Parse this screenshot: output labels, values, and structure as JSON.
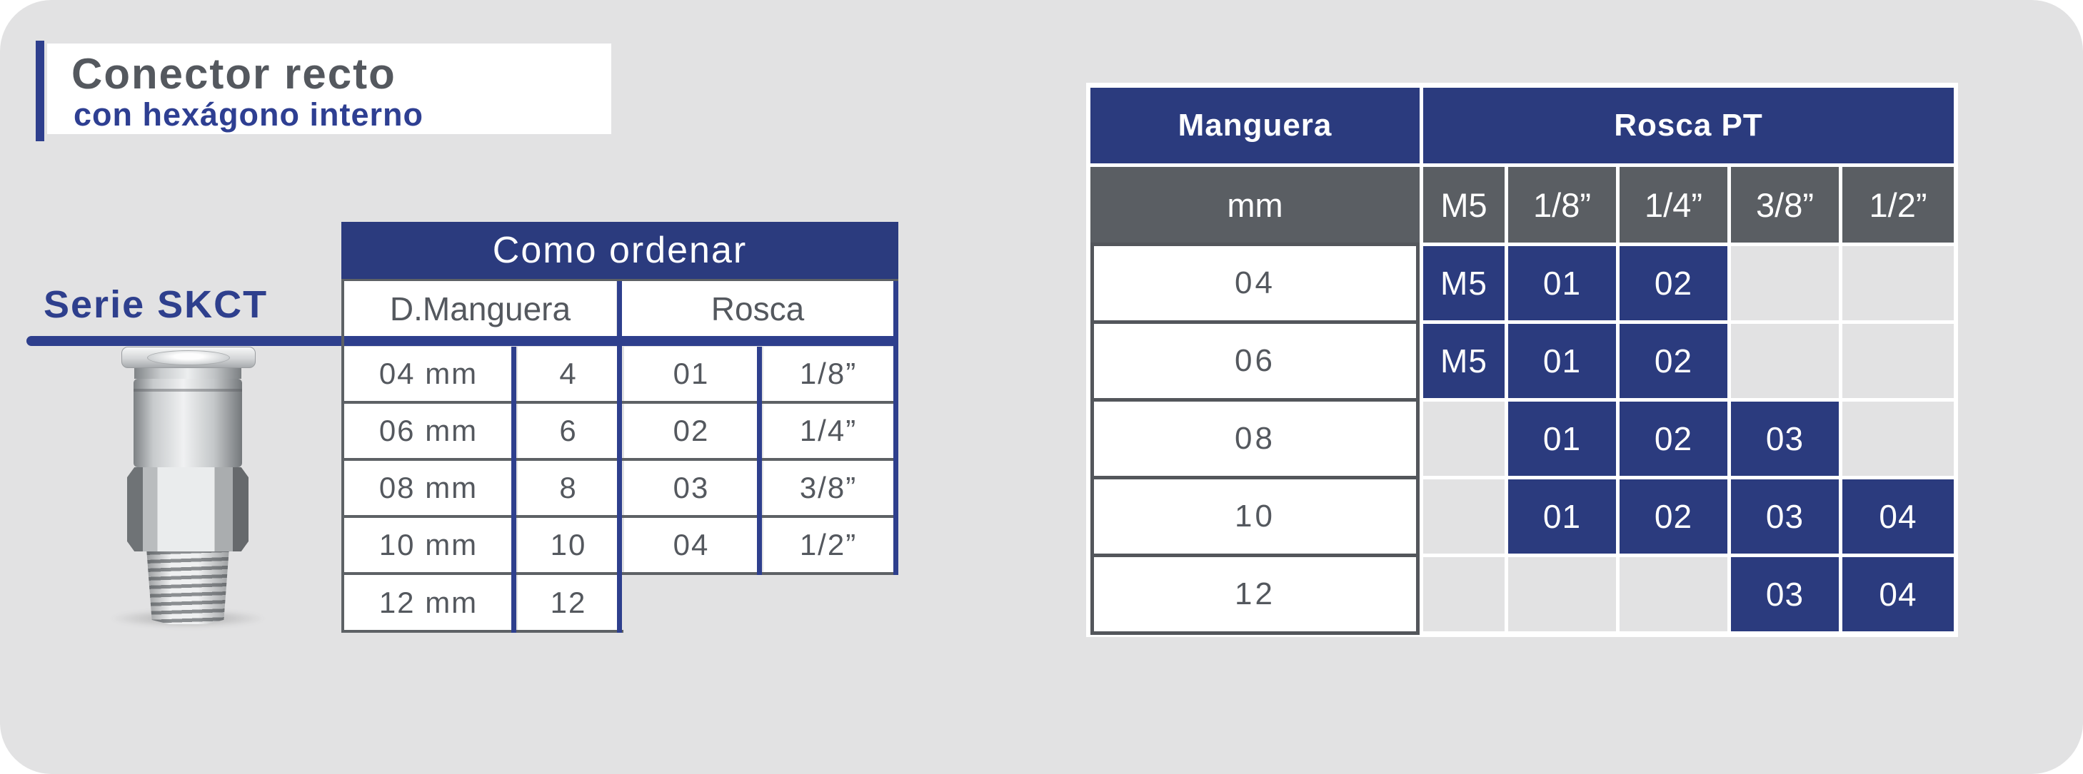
{
  "header": {
    "title": "Conector recto",
    "subtitle": "con hexágono interno",
    "series_label": "Serie SKCT"
  },
  "product": {
    "description": "metallic push-in straight fitting photo"
  },
  "como_ordenar": {
    "title": "Como ordenar",
    "group_headers": [
      "D.Manguera",
      "Rosca"
    ],
    "rows": [
      {
        "size": "04 mm",
        "size_code": "4",
        "thread_code": "01",
        "thread": "1/8”"
      },
      {
        "size": "06 mm",
        "size_code": "6",
        "thread_code": "02",
        "thread": "1/4”"
      },
      {
        "size": "08 mm",
        "size_code": "8",
        "thread_code": "03",
        "thread": "3/8”"
      },
      {
        "size": "10 mm",
        "size_code": "10",
        "thread_code": "04",
        "thread": "1/2”"
      },
      {
        "size": "12 mm",
        "size_code": "12",
        "thread_code": "",
        "thread": ""
      }
    ]
  },
  "rosca_pt": {
    "col_header": "Manguera",
    "group_header": "Rosca PT",
    "unit_header": "mm",
    "thread_sizes": [
      "M5",
      "1/8”",
      "1/4”",
      "3/8”",
      "1/2”"
    ],
    "rows": [
      {
        "manguera": "04",
        "cells": [
          "M5",
          "01",
          "02",
          "",
          ""
        ]
      },
      {
        "manguera": "06",
        "cells": [
          "M5",
          "01",
          "02",
          "",
          ""
        ]
      },
      {
        "manguera": "08",
        "cells": [
          "",
          "01",
          "02",
          "03",
          ""
        ]
      },
      {
        "manguera": "10",
        "cells": [
          "",
          "01",
          "02",
          "03",
          "04"
        ]
      },
      {
        "manguera": "12",
        "cells": [
          "",
          "",
          "",
          "03",
          "04"
        ]
      }
    ]
  },
  "colors": {
    "navy_cell": "#2b3b7e",
    "accent_blue": "#2e3f8d",
    "subtitle_blue": "#2e3f92",
    "gray_text": "#54585e",
    "gray_header_bg": "#5a5e63",
    "panel_gray": "#e2e2e3",
    "cell_border_gray": "#53565b",
    "white": "#ffffff"
  }
}
